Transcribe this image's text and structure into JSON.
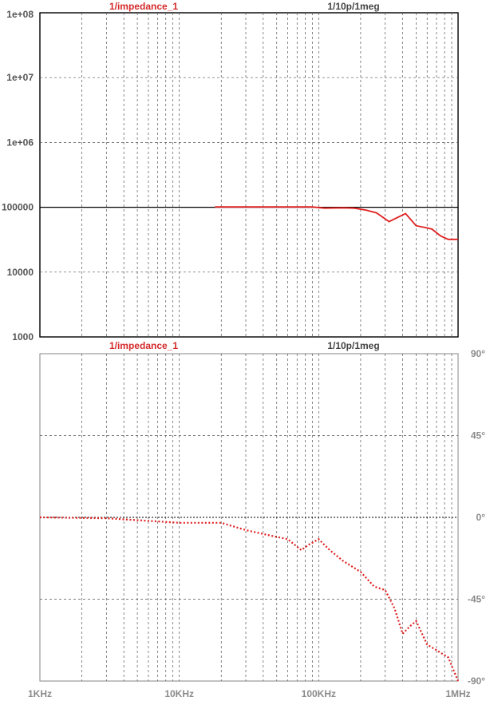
{
  "chart_data": [
    {
      "type": "line",
      "panel": "magnitude",
      "title_left": "1/impedance_1",
      "title_right": "1/10p/1meg",
      "x_axis": {
        "scale": "log",
        "range": [
          1000,
          1000000
        ],
        "tick_labels": [
          "1KHz",
          "10KHz",
          "100KHz",
          "1MHz"
        ]
      },
      "y_axis": {
        "scale": "log",
        "range": [
          1000,
          100000000
        ],
        "tick_labels": [
          "1e+08",
          "1e+07",
          "1e+06",
          "100000",
          "10000",
          "1000"
        ]
      },
      "grid": true,
      "reference_line": 100000,
      "series": [
        {
          "color": "#e02020",
          "style": "solid",
          "x": [
            18000,
            33000,
            75000,
            90000,
            110000,
            150000,
            180000,
            220000,
            260000,
            320000,
            360000,
            420000,
            500000,
            600000,
            650000,
            750000,
            850000,
            1000000
          ],
          "y": [
            101000,
            101000,
            101000,
            101000,
            97000,
            98000,
            97000,
            90000,
            82000,
            60000,
            68000,
            80000,
            52000,
            48000,
            46000,
            36000,
            32000,
            32000
          ]
        }
      ]
    },
    {
      "type": "line",
      "panel": "phase",
      "title_left": "1/impedance_1",
      "title_right": "1/10p/1meg",
      "x_axis": {
        "scale": "log",
        "range": [
          1000,
          1000000
        ],
        "tick_labels": [
          "1KHz",
          "10KHz",
          "100KHz",
          "1MHz"
        ]
      },
      "y_axis": {
        "scale": "linear",
        "range": [
          -90,
          90
        ],
        "tick_labels": [
          "90°",
          "45°",
          "0°",
          "-45°",
          "-90°"
        ]
      },
      "grid": true,
      "reference_line": 0,
      "series": [
        {
          "color": "#e02020",
          "style": "dotted",
          "x": [
            1000,
            3000,
            10000,
            20000,
            30000,
            45000,
            60000,
            75000,
            85000,
            100000,
            120000,
            150000,
            200000,
            250000,
            300000,
            350000,
            400000,
            450000,
            500000,
            600000,
            700000,
            850000,
            1000000
          ],
          "y": [
            0,
            -0.5,
            -3,
            -3,
            -7,
            -10,
            -12,
            -18,
            -15,
            -12,
            -18,
            -24,
            -30,
            -38,
            -40,
            -50,
            -64,
            -60,
            -57,
            -70,
            -73,
            -77,
            -90
          ]
        }
      ]
    }
  ]
}
